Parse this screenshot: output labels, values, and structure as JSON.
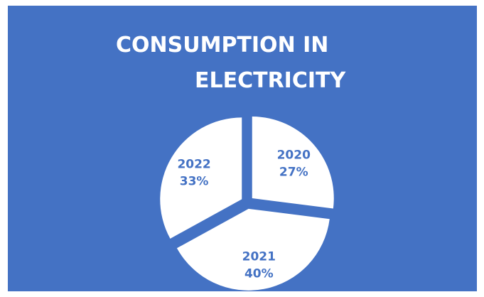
{
  "colors": {
    "background": "#4472c4",
    "slice": "#ffffff",
    "label": "#4472c4"
  },
  "chart_data": {
    "type": "pie",
    "title_lines": [
      "CONSUMPTION IN",
      "ELECTRICITY"
    ],
    "categories": [
      "2020",
      "2021",
      "2022"
    ],
    "values": [
      27,
      40,
      33
    ],
    "value_labels": [
      "27%",
      "40%",
      "33%"
    ],
    "exploded": true
  }
}
